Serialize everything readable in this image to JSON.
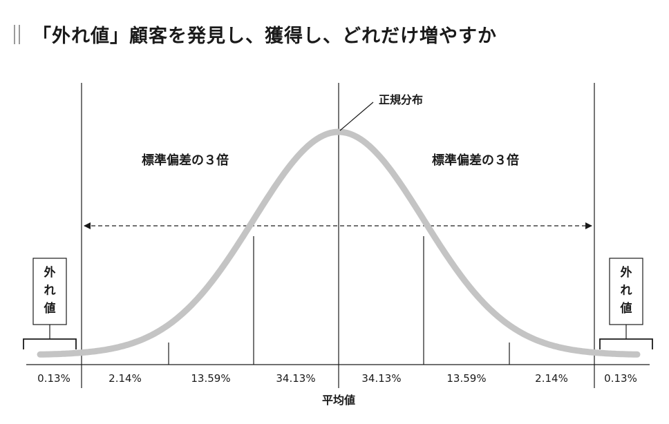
{
  "title": "「外れ値」顧客を発見し、獲得し、どれだけ増やすか",
  "curve_label": "正規分布",
  "sd_left_label": "標準偏差の３倍",
  "sd_right_label": "標準偏差の３倍",
  "outlier_left": [
    "外",
    "れ",
    "値"
  ],
  "outlier_right": [
    "外",
    "れ",
    "値"
  ],
  "segments": [
    "0.13%",
    "2.14%",
    "13.59%",
    "34.13%",
    "34.13%",
    "13.59%",
    "2.14%",
    "0.13%"
  ],
  "mean_label": "平均値",
  "colors": {
    "curve": "#c4c4c4",
    "ink": "#1a1a1a",
    "rule": "#9a9a9a"
  }
}
